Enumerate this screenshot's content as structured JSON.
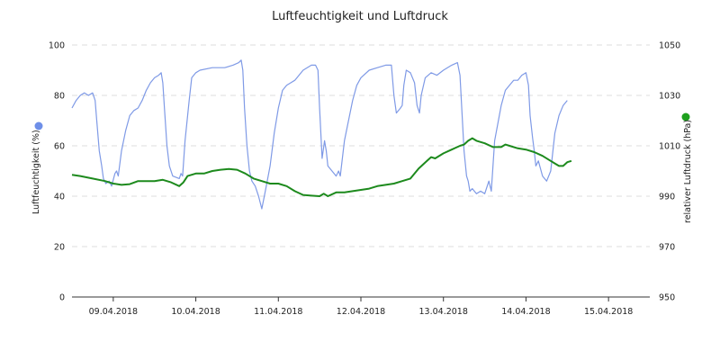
{
  "chart_data": {
    "type": "line",
    "title": "Luftfeuchtigkeit und Luftdruck",
    "x_tick_labels": [
      "09.04.2018",
      "10.04.2018",
      "11.04.2018",
      "12.04.2018",
      "13.04.2018",
      "14.04.2018",
      "15.04.2018"
    ],
    "y_left": {
      "label": "Luftfeuchtigkeit (%)",
      "range": [
        0,
        100
      ],
      "ticks": [
        0,
        20,
        40,
        60,
        80,
        100
      ]
    },
    "y_right": {
      "label": "relativer Luftdruck (hPa)",
      "range": [
        950,
        1050
      ],
      "ticks": [
        950,
        970,
        990,
        1010,
        1030,
        1050
      ]
    },
    "grid": true,
    "x_range_days": [
      8.5,
      15.5
    ],
    "series": [
      {
        "axis": "left",
        "color": "#7f9ae6",
        "values": [
          [
            8.5,
            75
          ],
          [
            8.55,
            78
          ],
          [
            8.6,
            80
          ],
          [
            8.65,
            81
          ],
          [
            8.7,
            80
          ],
          [
            8.75,
            81
          ],
          [
            8.78,
            78
          ],
          [
            8.8,
            70
          ],
          [
            8.83,
            58
          ],
          [
            8.86,
            52
          ],
          [
            8.88,
            47
          ],
          [
            8.91,
            45
          ],
          [
            8.95,
            46
          ],
          [
            8.98,
            44
          ],
          [
            9.02,
            49
          ],
          [
            9.04,
            50
          ],
          [
            9.06,
            48
          ],
          [
            9.1,
            58
          ],
          [
            9.15,
            66
          ],
          [
            9.2,
            72
          ],
          [
            9.25,
            74
          ],
          [
            9.3,
            75
          ],
          [
            9.35,
            78
          ],
          [
            9.4,
            82
          ],
          [
            9.45,
            85
          ],
          [
            9.5,
            87
          ],
          [
            9.55,
            88
          ],
          [
            9.58,
            89
          ],
          [
            9.6,
            85
          ],
          [
            9.62,
            75
          ],
          [
            9.65,
            60
          ],
          [
            9.68,
            52
          ],
          [
            9.72,
            48
          ],
          [
            9.8,
            47
          ],
          [
            9.82,
            49
          ],
          [
            9.84,
            48
          ],
          [
            9.87,
            62
          ],
          [
            9.92,
            78
          ],
          [
            9.95,
            87
          ],
          [
            10.0,
            89
          ],
          [
            10.05,
            90
          ],
          [
            10.2,
            91
          ],
          [
            10.35,
            91
          ],
          [
            10.45,
            92
          ],
          [
            10.52,
            93
          ],
          [
            10.55,
            94
          ],
          [
            10.57,
            90
          ],
          [
            10.59,
            75
          ],
          [
            10.62,
            60
          ],
          [
            10.65,
            50
          ],
          [
            10.68,
            46
          ],
          [
            10.72,
            44
          ],
          [
            10.76,
            40
          ],
          [
            10.8,
            35
          ],
          [
            10.83,
            40
          ],
          [
            10.86,
            45
          ],
          [
            10.9,
            52
          ],
          [
            10.95,
            65
          ],
          [
            11.0,
            75
          ],
          [
            11.05,
            82
          ],
          [
            11.1,
            84
          ],
          [
            11.15,
            85
          ],
          [
            11.2,
            86
          ],
          [
            11.3,
            90
          ],
          [
            11.4,
            92
          ],
          [
            11.45,
            92
          ],
          [
            11.48,
            90
          ],
          [
            11.5,
            75
          ],
          [
            11.53,
            55
          ],
          [
            11.56,
            62
          ],
          [
            11.58,
            58
          ],
          [
            11.6,
            52
          ],
          [
            11.65,
            50
          ],
          [
            11.7,
            48
          ],
          [
            11.73,
            50
          ],
          [
            11.75,
            48
          ],
          [
            11.8,
            62
          ],
          [
            11.9,
            78
          ],
          [
            11.95,
            84
          ],
          [
            12.0,
            87
          ],
          [
            12.1,
            90
          ],
          [
            12.2,
            91
          ],
          [
            12.3,
            92
          ],
          [
            12.37,
            92
          ],
          [
            12.4,
            80
          ],
          [
            12.43,
            73
          ],
          [
            12.48,
            75
          ],
          [
            12.5,
            76
          ],
          [
            12.52,
            84
          ],
          [
            12.55,
            90
          ],
          [
            12.6,
            89
          ],
          [
            12.65,
            85
          ],
          [
            12.68,
            76
          ],
          [
            12.71,
            73
          ],
          [
            12.73,
            80
          ],
          [
            12.78,
            87
          ],
          [
            12.85,
            89
          ],
          [
            12.92,
            88
          ],
          [
            13.0,
            90
          ],
          [
            13.1,
            92
          ],
          [
            13.17,
            93
          ],
          [
            13.2,
            88
          ],
          [
            13.25,
            58
          ],
          [
            13.28,
            48
          ],
          [
            13.3,
            46
          ],
          [
            13.32,
            42
          ],
          [
            13.35,
            43
          ],
          [
            13.4,
            41
          ],
          [
            13.45,
            42
          ],
          [
            13.5,
            41
          ],
          [
            13.55,
            46
          ],
          [
            13.58,
            42
          ],
          [
            13.62,
            62
          ],
          [
            13.7,
            76
          ],
          [
            13.75,
            82
          ],
          [
            13.8,
            84
          ],
          [
            13.85,
            86
          ],
          [
            13.9,
            86
          ],
          [
            13.95,
            88
          ],
          [
            14.0,
            89
          ],
          [
            14.03,
            84
          ],
          [
            14.05,
            72
          ],
          [
            14.08,
            63
          ],
          [
            14.1,
            58
          ],
          [
            14.12,
            52
          ],
          [
            14.15,
            54
          ],
          [
            14.2,
            48
          ],
          [
            14.25,
            46
          ],
          [
            14.3,
            50
          ],
          [
            14.35,
            65
          ],
          [
            14.4,
            72
          ],
          [
            14.45,
            76
          ],
          [
            14.5,
            78
          ]
        ]
      },
      {
        "axis": "right",
        "color": "#1d8a1d",
        "values": [
          [
            8.5,
            998.5
          ],
          [
            8.6,
            998
          ],
          [
            8.75,
            997
          ],
          [
            8.9,
            996
          ],
          [
            9.0,
            995
          ],
          [
            9.1,
            994.5
          ],
          [
            9.2,
            994.8
          ],
          [
            9.3,
            996
          ],
          [
            9.5,
            996
          ],
          [
            9.6,
            996.5
          ],
          [
            9.7,
            995.5
          ],
          [
            9.8,
            994
          ],
          [
            9.85,
            995.5
          ],
          [
            9.9,
            998
          ],
          [
            10.0,
            999
          ],
          [
            10.1,
            999
          ],
          [
            10.2,
            1000
          ],
          [
            10.3,
            1000.5
          ],
          [
            10.4,
            1000.8
          ],
          [
            10.5,
            1000.5
          ],
          [
            10.6,
            999
          ],
          [
            10.7,
            997
          ],
          [
            10.8,
            996
          ],
          [
            10.9,
            995
          ],
          [
            11.0,
            995
          ],
          [
            11.1,
            994
          ],
          [
            11.2,
            992
          ],
          [
            11.3,
            990.5
          ],
          [
            11.4,
            990.2
          ],
          [
            11.5,
            990
          ],
          [
            11.55,
            991
          ],
          [
            11.6,
            990
          ],
          [
            11.7,
            991.5
          ],
          [
            11.8,
            991.5
          ],
          [
            11.9,
            992
          ],
          [
            12.0,
            992.5
          ],
          [
            12.1,
            993
          ],
          [
            12.2,
            994
          ],
          [
            12.3,
            994.5
          ],
          [
            12.4,
            995
          ],
          [
            12.5,
            996
          ],
          [
            12.6,
            997
          ],
          [
            12.7,
            1001
          ],
          [
            12.8,
            1004
          ],
          [
            12.85,
            1005.5
          ],
          [
            12.9,
            1005
          ],
          [
            13.0,
            1007
          ],
          [
            13.1,
            1008.5
          ],
          [
            13.2,
            1010
          ],
          [
            13.25,
            1010.5
          ],
          [
            13.3,
            1012
          ],
          [
            13.35,
            1013
          ],
          [
            13.4,
            1012
          ],
          [
            13.5,
            1011
          ],
          [
            13.6,
            1009.5
          ],
          [
            13.7,
            1009.5
          ],
          [
            13.75,
            1010.5
          ],
          [
            13.8,
            1010
          ],
          [
            13.9,
            1009
          ],
          [
            14.0,
            1008.5
          ],
          [
            14.1,
            1007.5
          ],
          [
            14.2,
            1006
          ],
          [
            14.3,
            1004
          ],
          [
            14.35,
            1003
          ],
          [
            14.4,
            1002
          ],
          [
            14.45,
            1002
          ],
          [
            14.5,
            1003.5
          ],
          [
            14.55,
            1004
          ]
        ]
      }
    ]
  },
  "legend_markers": {
    "left_color": "#6e8fe8",
    "right_color": "#1ea01e"
  }
}
